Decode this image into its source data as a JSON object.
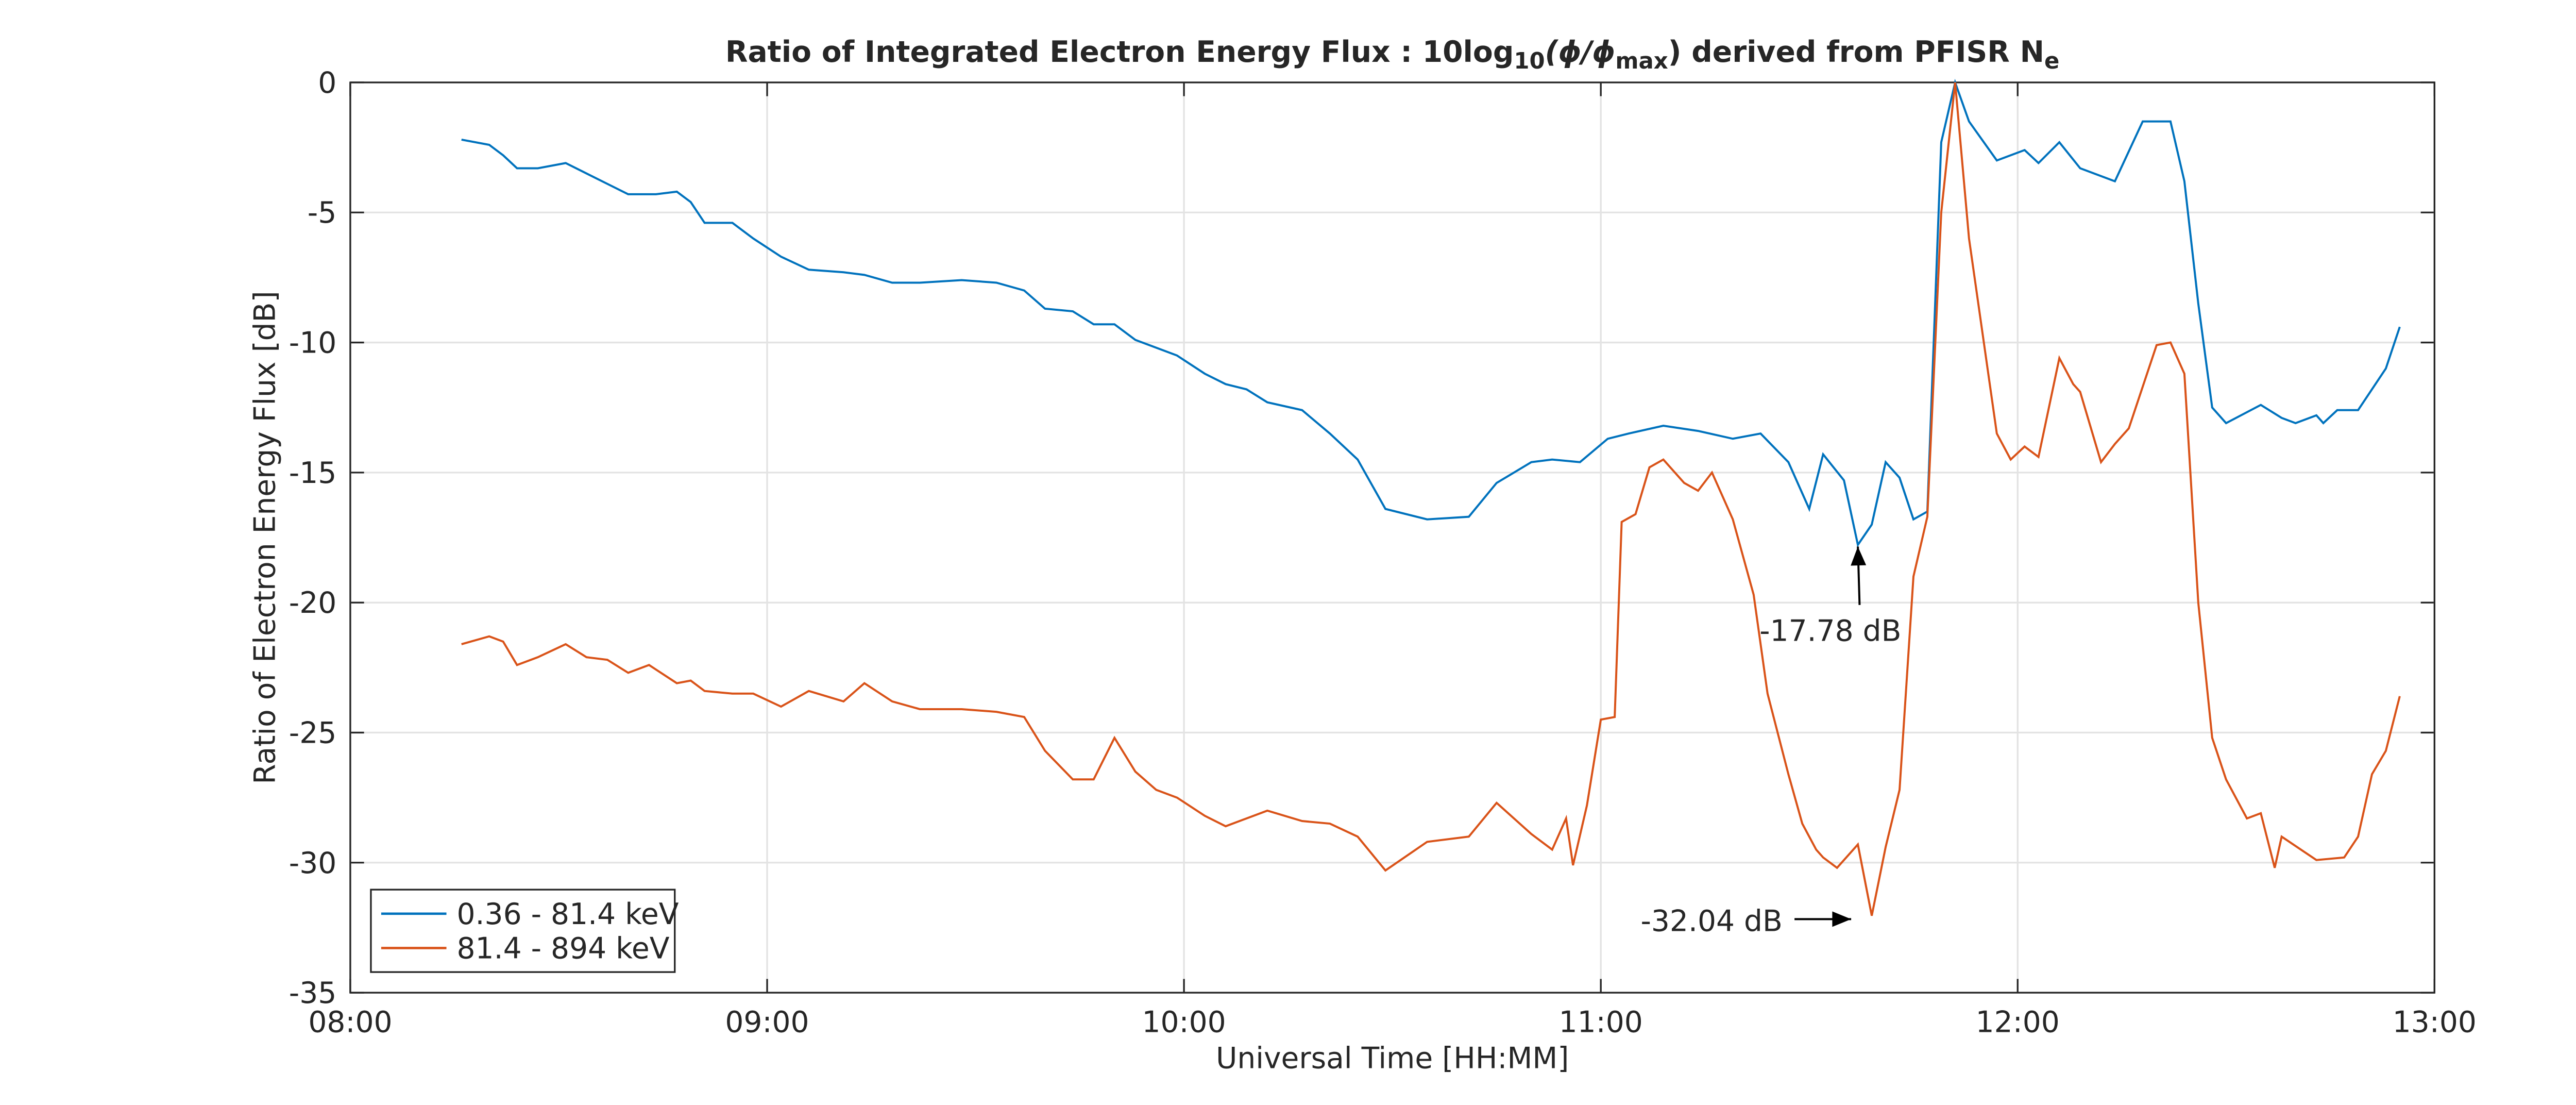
{
  "chart_data": {
    "type": "line",
    "title": [
      "Ratio of Integrated Electron Energy Flux : 10log",
      "10",
      "(ϕ/ϕ",
      "max",
      ") derived from PFISR N",
      "e"
    ],
    "xlabel": "Universal Time [HH:MM]",
    "ylabel": "Ratio of Electron Energy Flux [dB]",
    "xlim": [
      "08:00",
      "13:00"
    ],
    "xticks": [
      "08:00",
      "09:00",
      "10:00",
      "11:00",
      "12:00",
      "13:00"
    ],
    "ylim": [
      -35,
      0
    ],
    "yticks": [
      0,
      -5,
      -10,
      -15,
      -20,
      -25,
      -30,
      -35
    ],
    "grid": true,
    "legend": "lower left",
    "series": [
      {
        "name": "0.36 - 81.4 keV",
        "color": "#0072bd",
        "x": [
          "08:16",
          "08:20",
          "08:22",
          "08:24",
          "08:27",
          "08:31",
          "08:34",
          "08:37",
          "08:40",
          "08:44",
          "08:47",
          "08:49",
          "08:51",
          "08:55",
          "08:58",
          "09:02",
          "09:06",
          "09:11",
          "09:14",
          "09:18",
          "09:22",
          "09:28",
          "09:33",
          "09:37",
          "09:40",
          "09:44",
          "09:47",
          "09:50",
          "09:53",
          "09:56",
          "09:59",
          "10:03",
          "10:06",
          "10:09",
          "10:12",
          "10:17",
          "10:21",
          "10:25",
          "10:29",
          "10:35",
          "10:41",
          "10:45",
          "10:50",
          "10:53",
          "10:57",
          "11:01",
          "11:04",
          "11:09",
          "11:14",
          "11:19",
          "11:23",
          "11:27",
          "11:30",
          "11:32",
          "11:35",
          "11:37",
          "11:39",
          "11:41",
          "11:43",
          "11:45",
          "11:47",
          "11:49",
          "11:51",
          "11:53",
          "11:57",
          "12:01",
          "12:03",
          "12:06",
          "12:09",
          "12:14",
          "12:18",
          "12:22",
          "12:24",
          "12:26",
          "12:28",
          "12:30",
          "12:35",
          "12:38",
          "12:40",
          "12:43",
          "12:44",
          "12:46",
          "12:49",
          "12:53",
          "12:55"
        ],
        "values": [
          -2.2,
          -2.4,
          -2.8,
          -3.3,
          -3.3,
          -3.1,
          -3.5,
          -3.9,
          -4.3,
          -4.3,
          -4.2,
          -4.6,
          -5.4,
          -5.4,
          -6.0,
          -6.7,
          -7.2,
          -7.3,
          -7.4,
          -7.7,
          -7.7,
          -7.6,
          -7.7,
          -8.0,
          -8.7,
          -8.8,
          -9.3,
          -9.3,
          -9.9,
          -10.2,
          -10.5,
          -11.2,
          -11.6,
          -11.8,
          -12.3,
          -12.6,
          -13.5,
          -14.5,
          -16.4,
          -16.8,
          -16.7,
          -15.4,
          -14.6,
          -14.5,
          -14.6,
          -13.7,
          -13.5,
          -13.2,
          -13.4,
          -13.7,
          -13.5,
          -14.6,
          -16.4,
          -14.3,
          -15.3,
          -17.78,
          -17.0,
          -14.6,
          -15.2,
          -16.8,
          -16.5,
          -2.3,
          0,
          -1.5,
          -3.0,
          -2.6,
          -3.1,
          -2.3,
          -3.3,
          -3.8,
          -1.5,
          -1.5,
          -3.8,
          -8.5,
          -12.5,
          -13.1,
          -12.4,
          -12.9,
          -13.1,
          -12.8,
          -13.1,
          -12.6,
          -12.6,
          -11.0,
          -9.4
        ]
      },
      {
        "name": "81.4 - 894 keV",
        "color": "#d95319",
        "x": [
          "08:16",
          "08:20",
          "08:22",
          "08:24",
          "08:27",
          "08:31",
          "08:34",
          "08:37",
          "08:40",
          "08:43",
          "08:47",
          "08:49",
          "08:51",
          "08:55",
          "08:58",
          "09:02",
          "09:06",
          "09:11",
          "09:14",
          "09:18",
          "09:22",
          "09:28",
          "09:33",
          "09:37",
          "09:40",
          "09:44",
          "09:47",
          "09:50",
          "09:53",
          "09:56",
          "09:59",
          "10:03",
          "10:06",
          "10:09",
          "10:12",
          "10:17",
          "10:21",
          "10:25",
          "10:29",
          "10:35",
          "10:41",
          "10:45",
          "10:50",
          "10:53",
          "10:55",
          "10:56",
          "10:58",
          "11:00",
          "11:02",
          "11:03",
          "11:05",
          "11:07",
          "11:09",
          "11:12",
          "11:14",
          "11:16",
          "11:19",
          "11:22",
          "11:24",
          "11:27",
          "11:29",
          "11:31",
          "11:32",
          "11:34",
          "11:37",
          "11:39",
          "11:41",
          "11:43",
          "11:45",
          "11:47",
          "11:49",
          "11:51",
          "11:53",
          "11:57",
          "11:59",
          "12:01",
          "12:03",
          "12:06",
          "12:08",
          "12:09",
          "12:12",
          "12:14",
          "12:16",
          "12:20",
          "12:22",
          "12:24",
          "12:26",
          "12:28",
          "12:30",
          "12:33",
          "12:35",
          "12:37",
          "12:38",
          "12:43",
          "12:47",
          "12:49",
          "12:51",
          "12:53",
          "12:55"
        ],
        "values": [
          -21.6,
          -21.3,
          -21.5,
          -22.4,
          -22.1,
          -21.6,
          -22.1,
          -22.2,
          -22.7,
          -22.4,
          -23.1,
          -23.0,
          -23.4,
          -23.5,
          -23.5,
          -24.0,
          -23.4,
          -23.8,
          -23.1,
          -23.8,
          -24.1,
          -24.1,
          -24.2,
          -24.4,
          -25.7,
          -26.8,
          -26.8,
          -25.2,
          -26.5,
          -27.2,
          -27.5,
          -28.2,
          -28.6,
          -28.3,
          -28.0,
          -28.4,
          -28.5,
          -29.0,
          -30.3,
          -29.2,
          -29.0,
          -27.7,
          -28.9,
          -29.5,
          -28.3,
          -30.1,
          -27.8,
          -24.5,
          -24.4,
          -16.9,
          -16.6,
          -14.8,
          -14.5,
          -15.4,
          -15.7,
          -15.0,
          -16.8,
          -19.7,
          -23.5,
          -26.6,
          -28.5,
          -29.5,
          -29.8,
          -30.2,
          -29.3,
          -32.04,
          -29.4,
          -27.2,
          -19.0,
          -16.7,
          -5,
          0,
          -6,
          -13.5,
          -14.5,
          -14.0,
          -14.4,
          -10.6,
          -11.6,
          -11.9,
          -14.6,
          -13.9,
          -13.3,
          -10.1,
          -10.0,
          -11.2,
          -20,
          -25.2,
          -26.8,
          -28.3,
          -28.1,
          -30.2,
          -29.0,
          -29.9,
          -29.8,
          -29.0,
          -26.6,
          -25.7,
          -23.6
        ]
      }
    ],
    "annotations": [
      {
        "text": "-17.78 dB",
        "x": "11:37",
        "y": -17.78
      },
      {
        "text": "-32.04 dB",
        "x": "11:39",
        "y": -32.04
      }
    ]
  }
}
